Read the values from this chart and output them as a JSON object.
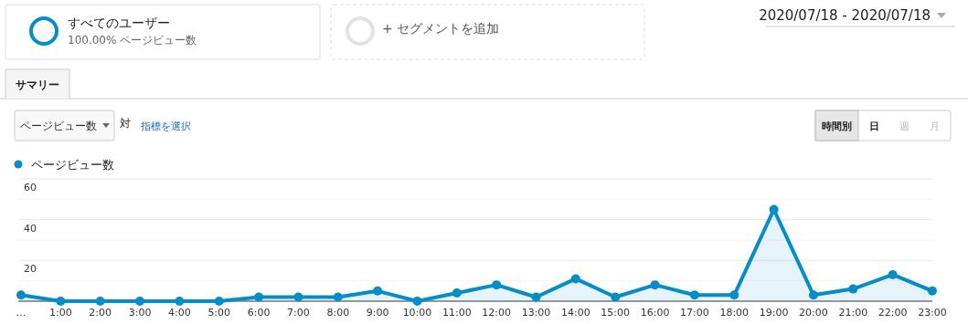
{
  "chart_data": {
    "type": "area",
    "categories": [
      "…",
      "1:00",
      "2:00",
      "3:00",
      "4:00",
      "5:00",
      "6:00",
      "7:00",
      "8:00",
      "9:00",
      "10:00",
      "11:00",
      "12:00",
      "13:00",
      "14:00",
      "15:00",
      "16:00",
      "17:00",
      "18:00",
      "19:00",
      "20:00",
      "21:00",
      "22:00",
      "23:00"
    ],
    "series": [
      {
        "name": "ページビュー数",
        "color": "#058dc7",
        "values": [
          3,
          0,
          0,
          0,
          0,
          0,
          2,
          2,
          2,
          5,
          0,
          4,
          8,
          2,
          11,
          2,
          8,
          3,
          3,
          45,
          3,
          6,
          13,
          5
        ]
      }
    ],
    "ylim": [
      0,
      60
    ],
    "yticks": [
      {
        "value": 10,
        "label": null
      },
      20,
      {
        "value": 30,
        "label": null
      },
      40,
      {
        "value": 50,
        "label": null
      },
      60
    ],
    "grid": "y",
    "legend": "top left",
    "marker": "circle",
    "line_style": "solid",
    "annotations": [
      "すべてのユーザー",
      "100.00% ページビュー数",
      "+ セグメントを追加",
      "2020/07/18 - 2020/07/18",
      "サマリー",
      "ページビュー数",
      "対",
      "指標を選択",
      "時間別",
      "日",
      "週",
      "月"
    ]
  }
}
